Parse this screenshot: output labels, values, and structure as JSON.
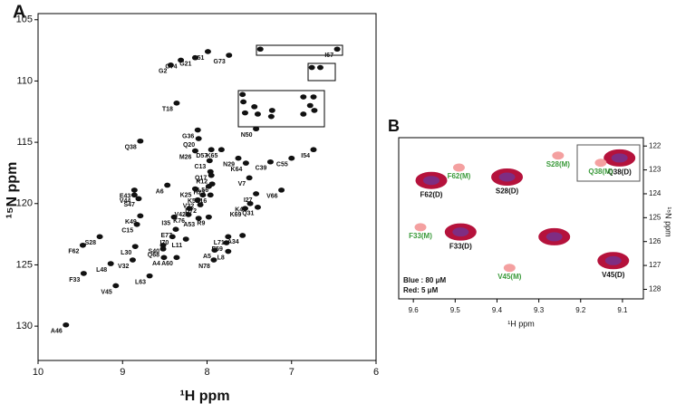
{
  "chart_data": [
    {
      "type": "scatter",
      "panel": "A",
      "xlabel": "¹H ppm",
      "ylabel": "¹⁵N ppm",
      "xlim": [
        6,
        10
      ],
      "x_inverted": true,
      "ylim": [
        104.5,
        132.8
      ],
      "y_inverted": true,
      "xticks": [
        10,
        9,
        8,
        7,
        6
      ],
      "yticks": [
        105,
        110,
        115,
        120,
        125,
        130
      ],
      "color": "#111111",
      "labels": [
        "I67",
        "G51",
        "G73",
        "G21",
        "G74",
        "G2",
        "T18",
        "G36",
        "Q38",
        "Q20",
        "D57",
        "K65",
        "M26",
        "N29",
        "K64",
        "C13",
        "C39",
        "C55",
        "I54",
        "Q17",
        "R12",
        "V7",
        "A6",
        "L56",
        "E43",
        "K25",
        "H23",
        "L16",
        "K52",
        "I27",
        "V66",
        "V22",
        "S47",
        "V44",
        "D72",
        "V42",
        "K41",
        "Q31",
        "K69",
        "K49",
        "K76",
        "A53",
        "I35",
        "R9",
        "C15",
        "E77",
        "I70",
        "L11",
        "L71",
        "A34",
        "S28",
        "F62",
        "S40",
        "Q68",
        "E59",
        "A5",
        "L30",
        "A4",
        "L8",
        "N78",
        "A60",
        "V32",
        "L48",
        "F33",
        "L63",
        "V45",
        "A46",
        "N50",
        null,
        null,
        null,
        null,
        null,
        null,
        null,
        null,
        null,
        null,
        null,
        null,
        null,
        null,
        null
      ],
      "x": [
        6.46,
        7.99,
        7.74,
        8.14,
        8.31,
        8.43,
        8.36,
        8.11,
        8.79,
        8.1,
        7.95,
        7.83,
        8.14,
        7.63,
        7.54,
        7.97,
        7.25,
        7.0,
        6.74,
        7.96,
        7.95,
        7.5,
        8.47,
        7.94,
        8.86,
        8.14,
        7.98,
        7.96,
        8.05,
        7.42,
        7.12,
        8.11,
        8.81,
        8.86,
        8.08,
        8.21,
        7.49,
        7.4,
        7.55,
        8.79,
        8.22,
        8.1,
        8.39,
        7.98,
        8.83,
        8.37,
        8.41,
        8.25,
        7.75,
        7.58,
        9.27,
        9.47,
        8.52,
        8.52,
        7.77,
        7.91,
        8.85,
        8.51,
        7.75,
        7.92,
        8.36,
        8.88,
        9.14,
        9.46,
        8.68,
        9.08,
        9.67,
        7.42,
        7.37,
        6.76,
        6.66,
        7.58,
        7.57,
        7.44,
        7.55,
        7.4,
        7.23,
        7.24,
        6.86,
        6.74,
        6.78,
        6.73,
        6.86
      ],
      "y": [
        107.4,
        107.6,
        107.9,
        108.1,
        108.3,
        108.7,
        111.8,
        114.0,
        114.9,
        114.7,
        115.6,
        115.6,
        115.7,
        116.3,
        116.7,
        116.5,
        116.6,
        116.3,
        115.6,
        117.4,
        117.7,
        117.9,
        118.5,
        118.4,
        118.9,
        118.8,
        118.6,
        119.3,
        119.3,
        119.2,
        118.9,
        119.7,
        119.6,
        119.3,
        120.1,
        120.4,
        120.0,
        120.3,
        120.4,
        121.0,
        120.9,
        121.2,
        121.1,
        121.1,
        121.7,
        122.1,
        122.7,
        122.9,
        122.7,
        122.6,
        122.7,
        123.4,
        123.4,
        123.7,
        123.2,
        123.8,
        123.5,
        124.4,
        123.9,
        124.6,
        124.4,
        124.6,
        124.9,
        125.7,
        125.9,
        126.7,
        129.9,
        113.9,
        107.4,
        108.9,
        108.9,
        111.1,
        111.7,
        112.1,
        112.6,
        112.7,
        112.4,
        112.9,
        111.3,
        111.3,
        112.0,
        112.4,
        112.7
      ]
    },
    {
      "type": "scatter",
      "panel": "B",
      "xlabel": "¹H ppm",
      "ylabel": "¹⁵N ppm",
      "xlim": [
        9.05,
        9.635
      ],
      "x_inverted": true,
      "ylim": [
        121.65,
        128.4
      ],
      "y_inverted": true,
      "xticks": [
        9.6,
        9.5,
        9.4,
        9.3,
        9.2,
        9.1
      ],
      "yticks": [
        122,
        123,
        124,
        125,
        126,
        127,
        128
      ],
      "annotations": [
        "Blue : 80 μM",
        "Red: 5 μM"
      ],
      "series": [
        {
          "color": "#b5123c",
          "core_color": "#5a3fb0",
          "label_color": "#111111",
          "labels": [
            "F62(D)",
            "S28(D)",
            "F33(D)",
            null,
            "V45(D)",
            "Q38(D)"
          ],
          "x": [
            9.557,
            9.376,
            9.487,
            9.263,
            9.122,
            9.107
          ],
          "y": [
            123.44,
            123.3,
            125.6,
            125.8,
            126.8,
            122.5
          ]
        },
        {
          "color": "#f4a0a0",
          "label_color": "#3a9a3a",
          "labels": [
            "Q38(M)",
            "S28(M)",
            "F62(M)",
            "F33(M)",
            "V45(M)"
          ],
          "x": [
            9.152,
            9.254,
            9.491,
            9.583,
            9.37
          ],
          "y": [
            122.7,
            122.4,
            122.9,
            125.4,
            127.1
          ]
        }
      ]
    }
  ]
}
